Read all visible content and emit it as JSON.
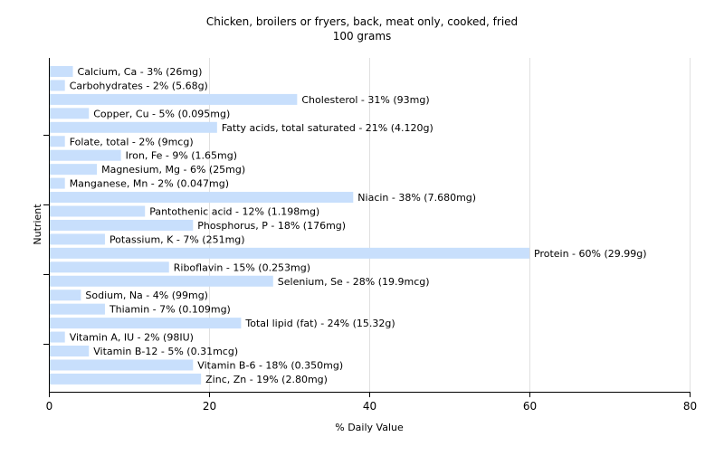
{
  "chart_data": {
    "type": "bar",
    "orientation": "horizontal",
    "title": "Chicken, broilers or fryers, back, meat only, cooked, fried",
    "subtitle": "100 grams",
    "xlabel": "% Daily Value",
    "ylabel": "Nutrient",
    "xlim": [
      0,
      80
    ],
    "xticks": [
      0,
      20,
      40,
      60,
      80
    ],
    "grid": true,
    "bar_color": "#c8dffc",
    "grid_color": "#e0e0e0",
    "axis_color": "#000000",
    "categories": [
      "Calcium, Ca",
      "Carbohydrates",
      "Cholesterol",
      "Copper, Cu",
      "Fatty acids, total saturated",
      "Folate, total",
      "Iron, Fe",
      "Magnesium, Mg",
      "Manganese, Mn",
      "Niacin",
      "Pantothenic acid",
      "Phosphorus, P",
      "Potassium, K",
      "Protein",
      "Riboflavin",
      "Selenium, Se",
      "Sodium, Na",
      "Thiamin",
      "Total lipid (fat)",
      "Vitamin A, IU",
      "Vitamin B-12",
      "Vitamin B-6",
      "Zinc, Zn"
    ],
    "values": [
      3,
      2,
      31,
      5,
      21,
      2,
      9,
      6,
      2,
      38,
      12,
      18,
      7,
      60,
      15,
      28,
      4,
      7,
      24,
      2,
      5,
      18,
      19
    ],
    "labels": [
      "Calcium, Ca - 3% (26mg)",
      "Carbohydrates - 2% (5.68g)",
      "Cholesterol - 31% (93mg)",
      "Copper, Cu - 5% (0.095mg)",
      "Fatty acids, total saturated - 21% (4.120g)",
      "Folate, total - 2% (9mcg)",
      "Iron, Fe - 9% (1.65mg)",
      "Magnesium, Mg - 6% (25mg)",
      "Manganese, Mn - 2% (0.047mg)",
      "Niacin - 38% (7.680mg)",
      "Pantothenic acid - 12% (1.198mg)",
      "Phosphorus, P - 18% (176mg)",
      "Potassium, K - 7% (251mg)",
      "Protein - 60% (29.99g)",
      "Riboflavin - 15% (0.253mg)",
      "Selenium, Se - 28% (19.9mcg)",
      "Sodium, Na - 4% (99mg)",
      "Thiamin - 7% (0.109mg)",
      "Total lipid (fat) - 24% (15.32g)",
      "Vitamin A, IU - 2% (98IU)",
      "Vitamin B-12 - 5% (0.31mcg)",
      "Vitamin B-6 - 18% (0.350mg)",
      "Zinc, Zn - 19% (2.80mg)"
    ]
  }
}
